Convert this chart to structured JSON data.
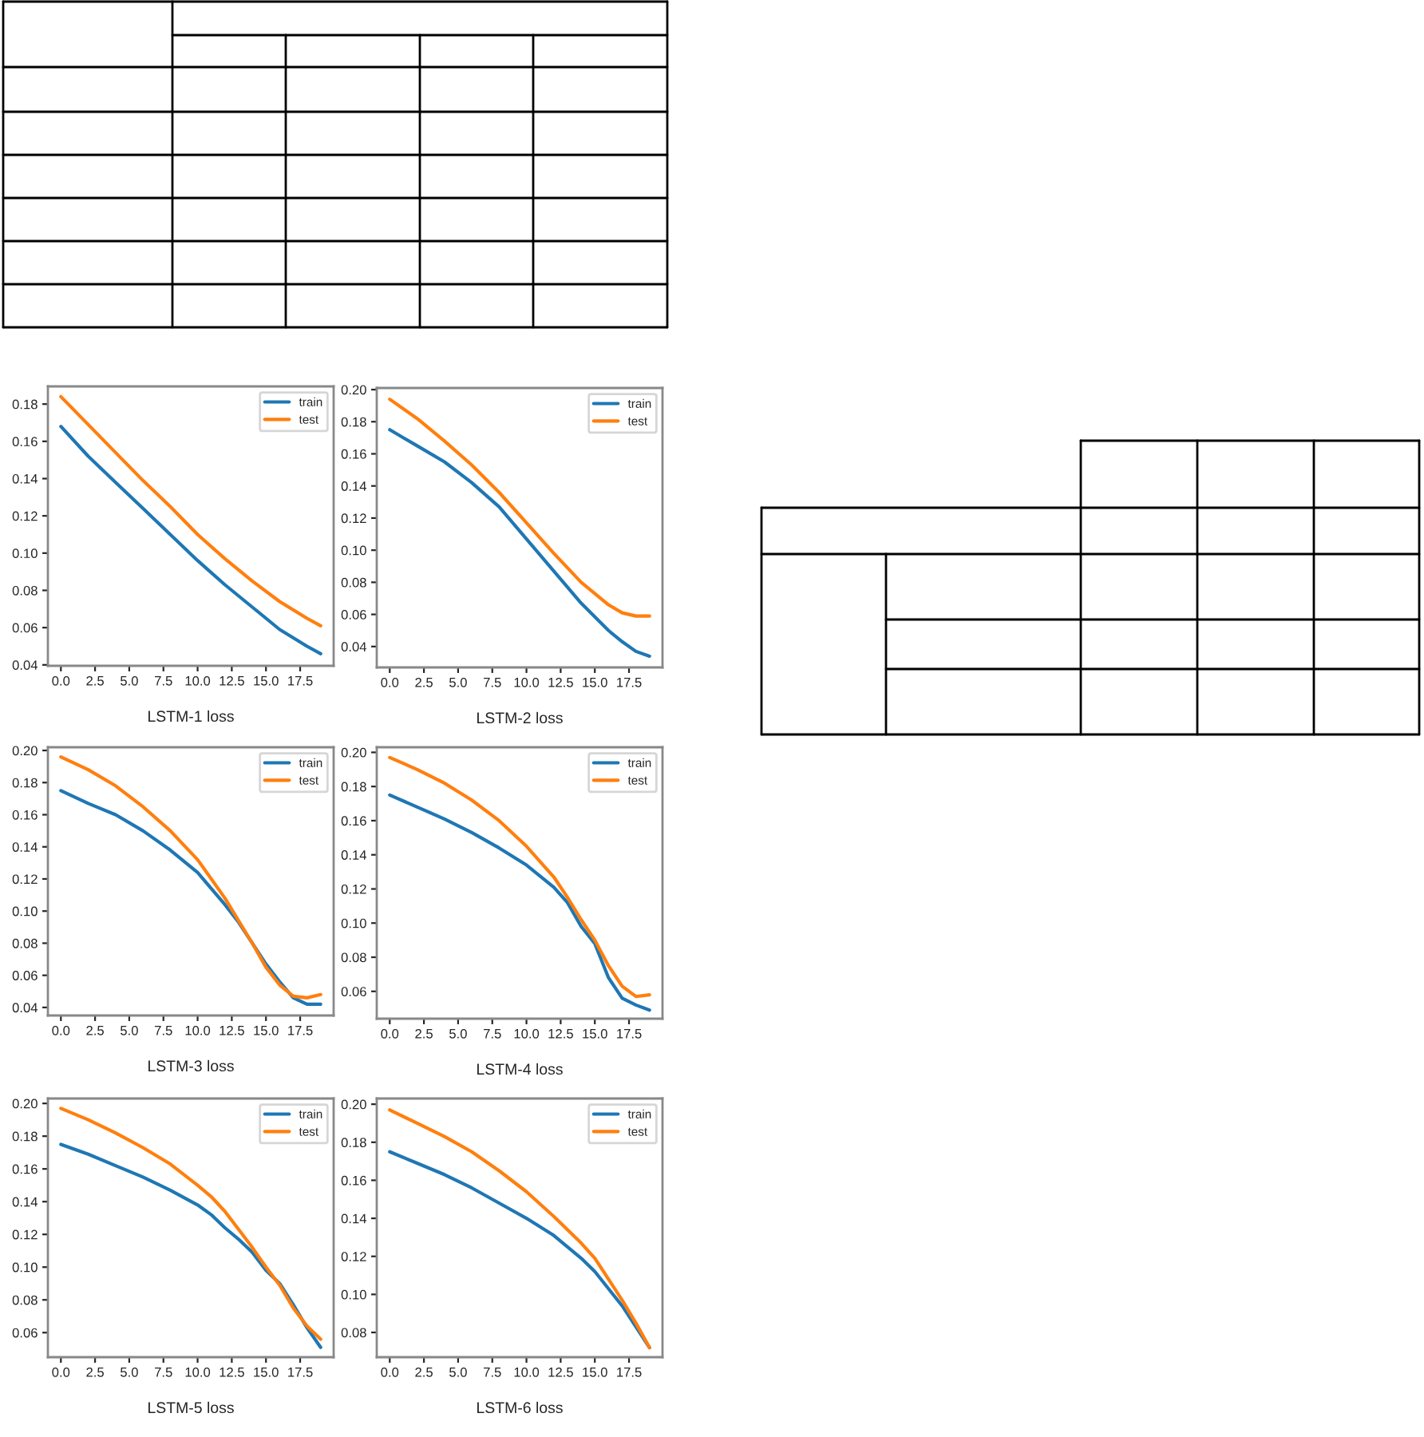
{
  "chart_data": [
    {
      "type": "line",
      "xlabel": "LSTM-1 loss",
      "legend": "top right",
      "grid": false,
      "xlim": [
        -0.95,
        19.95
      ],
      "ylim": [
        0.0395,
        0.1895
      ],
      "xticks": [
        {
          "value": 0,
          "label": "0.0"
        },
        {
          "value": 2.5,
          "label": "2.5"
        },
        {
          "value": 5,
          "label": "5.0"
        },
        {
          "value": 7.5,
          "label": "7.5"
        },
        {
          "value": 10,
          "label": "10.0"
        },
        {
          "value": 12.5,
          "label": "12.5"
        },
        {
          "value": 15,
          "label": "15.0"
        },
        {
          "value": 17.5,
          "label": "17.5"
        }
      ],
      "yticks": [
        {
          "value": 0.04,
          "label": "0.04"
        },
        {
          "value": 0.06,
          "label": "0.06"
        },
        {
          "value": 0.08,
          "label": "0.08"
        },
        {
          "value": 0.1,
          "label": "0.10"
        },
        {
          "value": 0.12,
          "label": "0.12"
        },
        {
          "value": 0.14,
          "label": "0.14"
        },
        {
          "value": 0.16,
          "label": "0.16"
        },
        {
          "value": 0.18,
          "label": "0.18"
        }
      ],
      "x": [
        0,
        2,
        4,
        6,
        8,
        10,
        12,
        14,
        16,
        18,
        19
      ],
      "series": [
        {
          "name": "train",
          "color": "#1f77b4",
          "values": [
            0.168,
            0.152,
            0.138,
            0.124,
            0.11,
            0.096,
            0.083,
            0.071,
            0.059,
            0.05,
            0.046
          ]
        },
        {
          "name": "test",
          "color": "#ff7f0e",
          "values": [
            0.184,
            0.169,
            0.154,
            0.139,
            0.125,
            0.11,
            0.097,
            0.085,
            0.074,
            0.065,
            0.061
          ]
        }
      ]
    },
    {
      "type": "line",
      "xlabel": "LSTM-2 loss",
      "legend": "top right",
      "grid": false,
      "xlim": [
        -0.95,
        19.95
      ],
      "ylim": [
        0.027,
        0.201
      ],
      "xticks": [
        {
          "value": 0,
          "label": "0.0"
        },
        {
          "value": 2.5,
          "label": "2.5"
        },
        {
          "value": 5,
          "label": "5.0"
        },
        {
          "value": 7.5,
          "label": "7.5"
        },
        {
          "value": 10,
          "label": "10.0"
        },
        {
          "value": 12.5,
          "label": "12.5"
        },
        {
          "value": 15,
          "label": "15.0"
        },
        {
          "value": 17.5,
          "label": "17.5"
        }
      ],
      "yticks": [
        {
          "value": 0.04,
          "label": "0.04"
        },
        {
          "value": 0.06,
          "label": "0.06"
        },
        {
          "value": 0.08,
          "label": "0.08"
        },
        {
          "value": 0.1,
          "label": "0.10"
        },
        {
          "value": 0.12,
          "label": "0.12"
        },
        {
          "value": 0.14,
          "label": "0.14"
        },
        {
          "value": 0.16,
          "label": "0.16"
        },
        {
          "value": 0.18,
          "label": "0.18"
        },
        {
          "value": 0.2,
          "label": "0.20"
        }
      ],
      "x": [
        0,
        2,
        4,
        6,
        8,
        10,
        12,
        14,
        16,
        17,
        18,
        19
      ],
      "series": [
        {
          "name": "train",
          "color": "#1f77b4",
          "values": [
            0.175,
            0.165,
            0.155,
            0.142,
            0.127,
            0.107,
            0.087,
            0.067,
            0.05,
            0.043,
            0.037,
            0.034
          ]
        },
        {
          "name": "test",
          "color": "#ff7f0e",
          "values": [
            0.194,
            0.182,
            0.168,
            0.153,
            0.136,
            0.117,
            0.098,
            0.08,
            0.066,
            0.061,
            0.059,
            0.059
          ]
        }
      ]
    },
    {
      "type": "line",
      "xlabel": "LSTM-3 loss",
      "legend": "top right",
      "grid": false,
      "xlim": [
        -0.95,
        19.95
      ],
      "ylim": [
        0.035,
        0.202
      ],
      "xticks": [
        {
          "value": 0,
          "label": "0.0"
        },
        {
          "value": 2.5,
          "label": "2.5"
        },
        {
          "value": 5,
          "label": "5.0"
        },
        {
          "value": 7.5,
          "label": "7.5"
        },
        {
          "value": 10,
          "label": "10.0"
        },
        {
          "value": 12.5,
          "label": "12.5"
        },
        {
          "value": 15,
          "label": "15.0"
        },
        {
          "value": 17.5,
          "label": "17.5"
        }
      ],
      "yticks": [
        {
          "value": 0.04,
          "label": "0.04"
        },
        {
          "value": 0.06,
          "label": "0.06"
        },
        {
          "value": 0.08,
          "label": "0.08"
        },
        {
          "value": 0.1,
          "label": "0.10"
        },
        {
          "value": 0.12,
          "label": "0.12"
        },
        {
          "value": 0.14,
          "label": "0.14"
        },
        {
          "value": 0.16,
          "label": "0.16"
        },
        {
          "value": 0.18,
          "label": "0.18"
        },
        {
          "value": 0.2,
          "label": "0.20"
        }
      ],
      "x": [
        0,
        2,
        4,
        6,
        8,
        10,
        12,
        13,
        14,
        15,
        16,
        17,
        18,
        19
      ],
      "series": [
        {
          "name": "train",
          "color": "#1f77b4",
          "values": [
            0.175,
            0.167,
            0.16,
            0.15,
            0.138,
            0.124,
            0.104,
            0.093,
            0.08,
            0.067,
            0.056,
            0.046,
            0.042,
            0.042
          ]
        },
        {
          "name": "test",
          "color": "#ff7f0e",
          "values": [
            0.196,
            0.188,
            0.178,
            0.165,
            0.15,
            0.132,
            0.108,
            0.094,
            0.08,
            0.065,
            0.054,
            0.047,
            0.046,
            0.048
          ]
        }
      ]
    },
    {
      "type": "line",
      "xlabel": "LSTM-4 loss",
      "legend": "top right",
      "grid": false,
      "xlim": [
        -0.95,
        19.95
      ],
      "ylim": [
        0.044,
        0.203
      ],
      "xticks": [
        {
          "value": 0,
          "label": "0.0"
        },
        {
          "value": 2.5,
          "label": "2.5"
        },
        {
          "value": 5,
          "label": "5.0"
        },
        {
          "value": 7.5,
          "label": "7.5"
        },
        {
          "value": 10,
          "label": "10.0"
        },
        {
          "value": 12.5,
          "label": "12.5"
        },
        {
          "value": 15,
          "label": "15.0"
        },
        {
          "value": 17.5,
          "label": "17.5"
        }
      ],
      "yticks": [
        {
          "value": 0.06,
          "label": "0.06"
        },
        {
          "value": 0.08,
          "label": "0.08"
        },
        {
          "value": 0.1,
          "label": "0.10"
        },
        {
          "value": 0.12,
          "label": "0.12"
        },
        {
          "value": 0.14,
          "label": "0.14"
        },
        {
          "value": 0.16,
          "label": "0.16"
        },
        {
          "value": 0.18,
          "label": "0.18"
        },
        {
          "value": 0.2,
          "label": "0.20"
        }
      ],
      "x": [
        0,
        2,
        4,
        6,
        8,
        10,
        12,
        13,
        14,
        15,
        16,
        17,
        18,
        19
      ],
      "series": [
        {
          "name": "train",
          "color": "#1f77b4",
          "values": [
            0.175,
            0.168,
            0.161,
            0.153,
            0.144,
            0.134,
            0.121,
            0.112,
            0.098,
            0.088,
            0.068,
            0.056,
            0.052,
            0.049
          ]
        },
        {
          "name": "test",
          "color": "#ff7f0e",
          "values": [
            0.197,
            0.19,
            0.182,
            0.172,
            0.16,
            0.145,
            0.127,
            0.115,
            0.102,
            0.09,
            0.075,
            0.063,
            0.057,
            0.058
          ]
        }
      ]
    },
    {
      "type": "line",
      "xlabel": "LSTM-5 loss",
      "legend": "top right",
      "grid": false,
      "xlim": [
        -0.95,
        19.95
      ],
      "ylim": [
        0.045,
        0.203
      ],
      "xticks": [
        {
          "value": 0,
          "label": "0.0"
        },
        {
          "value": 2.5,
          "label": "2.5"
        },
        {
          "value": 5,
          "label": "5.0"
        },
        {
          "value": 7.5,
          "label": "7.5"
        },
        {
          "value": 10,
          "label": "10.0"
        },
        {
          "value": 12.5,
          "label": "12.5"
        },
        {
          "value": 15,
          "label": "15.0"
        },
        {
          "value": 17.5,
          "label": "17.5"
        }
      ],
      "yticks": [
        {
          "value": 0.06,
          "label": "0.06"
        },
        {
          "value": 0.08,
          "label": "0.08"
        },
        {
          "value": 0.1,
          "label": "0.10"
        },
        {
          "value": 0.12,
          "label": "0.12"
        },
        {
          "value": 0.14,
          "label": "0.14"
        },
        {
          "value": 0.16,
          "label": "0.16"
        },
        {
          "value": 0.18,
          "label": "0.18"
        },
        {
          "value": 0.2,
          "label": "0.20"
        }
      ],
      "x": [
        0,
        2,
        4,
        6,
        8,
        10,
        11,
        12,
        13,
        14,
        15,
        16,
        17,
        18,
        19
      ],
      "series": [
        {
          "name": "train",
          "color": "#1f77b4",
          "values": [
            0.175,
            0.169,
            0.162,
            0.155,
            0.147,
            0.138,
            0.132,
            0.124,
            0.117,
            0.109,
            0.098,
            0.09,
            0.077,
            0.063,
            0.051
          ]
        },
        {
          "name": "test",
          "color": "#ff7f0e",
          "values": [
            0.197,
            0.19,
            0.182,
            0.173,
            0.163,
            0.15,
            0.143,
            0.134,
            0.123,
            0.112,
            0.1,
            0.089,
            0.075,
            0.064,
            0.056
          ]
        }
      ]
    },
    {
      "type": "line",
      "xlabel": "LSTM-6 loss",
      "legend": "top right",
      "grid": false,
      "xlim": [
        -0.95,
        19.95
      ],
      "ylim": [
        0.067,
        0.203
      ],
      "xticks": [
        {
          "value": 0,
          "label": "0.0"
        },
        {
          "value": 2.5,
          "label": "2.5"
        },
        {
          "value": 5,
          "label": "5.0"
        },
        {
          "value": 7.5,
          "label": "7.5"
        },
        {
          "value": 10,
          "label": "10.0"
        },
        {
          "value": 12.5,
          "label": "12.5"
        },
        {
          "value": 15,
          "label": "15.0"
        },
        {
          "value": 17.5,
          "label": "17.5"
        }
      ],
      "yticks": [
        {
          "value": 0.08,
          "label": "0.08"
        },
        {
          "value": 0.1,
          "label": "0.10"
        },
        {
          "value": 0.12,
          "label": "0.12"
        },
        {
          "value": 0.14,
          "label": "0.14"
        },
        {
          "value": 0.16,
          "label": "0.16"
        },
        {
          "value": 0.18,
          "label": "0.18"
        },
        {
          "value": 0.2,
          "label": "0.20"
        }
      ],
      "x": [
        0,
        2,
        4,
        6,
        8,
        10,
        12,
        14,
        15,
        16,
        17,
        18,
        19
      ],
      "series": [
        {
          "name": "train",
          "color": "#1f77b4",
          "values": [
            0.175,
            0.169,
            0.163,
            0.156,
            0.148,
            0.14,
            0.131,
            0.119,
            0.112,
            0.103,
            0.094,
            0.083,
            0.072
          ]
        },
        {
          "name": "test",
          "color": "#ff7f0e",
          "values": [
            0.197,
            0.19,
            0.183,
            0.175,
            0.165,
            0.154,
            0.141,
            0.127,
            0.119,
            0.108,
            0.097,
            0.085,
            0.072
          ]
        }
      ]
    }
  ]
}
